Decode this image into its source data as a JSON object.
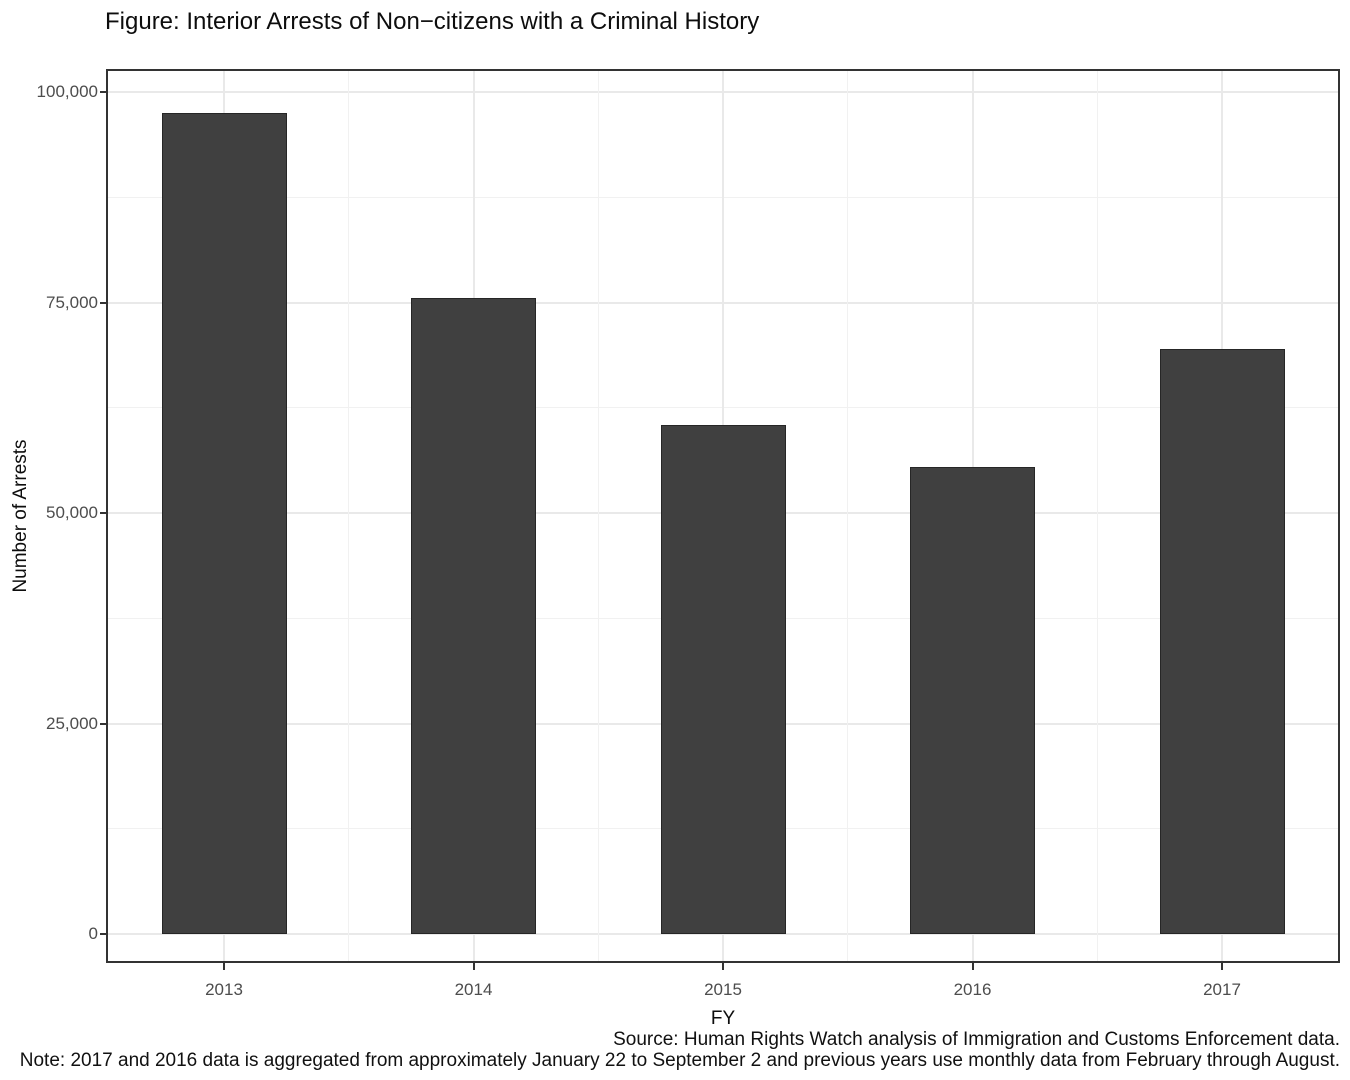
{
  "chart_data": {
    "type": "bar",
    "title": "Figure: Interior Arrests of Non−citizens with a Criminal History",
    "categories": [
      "2013",
      "2014",
      "2015",
      "2016",
      "2017"
    ],
    "values": [
      97500,
      75500,
      60500,
      55500,
      69500
    ],
    "xlabel": "FY",
    "ylabel": "Number of Arrests",
    "ylim": [
      0,
      102800
    ],
    "yticks": [
      0,
      25000,
      50000,
      75000,
      100000
    ],
    "ytick_labels": [
      "0",
      "25,000",
      "50,000",
      "75,000",
      "100,000"
    ],
    "minor_yticks": [
      12500,
      37500,
      62500,
      87500
    ],
    "grid": true,
    "legend": "none",
    "bar_color": "#404040",
    "source": "Source: Human Rights Watch analysis of Immigration and Customs Enforcement data.",
    "note": "Note: 2017 and 2016 data is aggregated from approximately January 22 to September 2 and previous years use monthly data from February through August."
  }
}
